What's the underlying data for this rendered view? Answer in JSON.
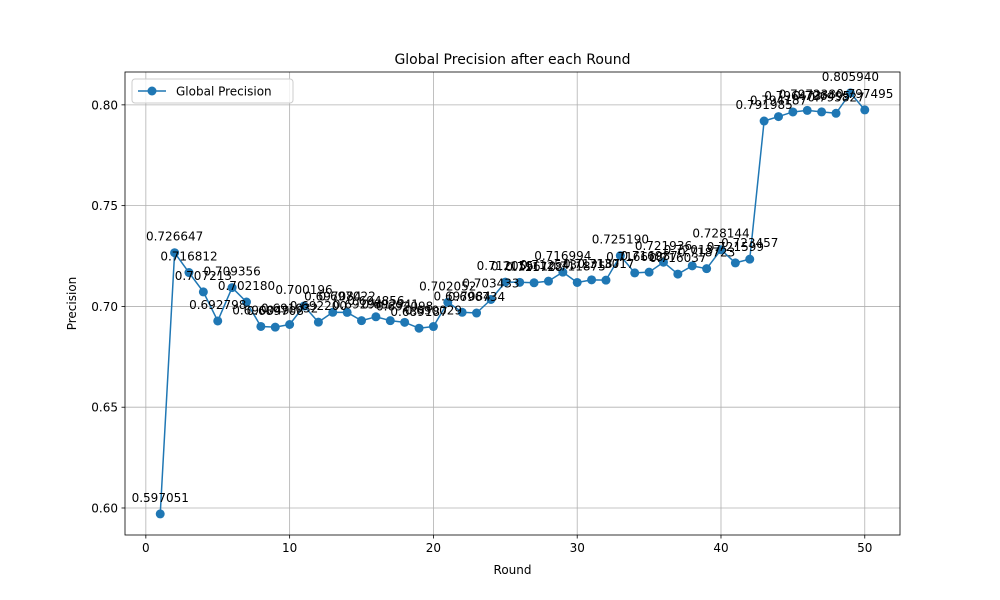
{
  "chart_data": {
    "type": "line",
    "title": "Global Precision after each Round",
    "xlabel": "Round",
    "ylabel": "Precision",
    "xlim": [
      -1.45,
      52.45
    ],
    "ylim": [
      0.5866,
      0.8163
    ],
    "xticks": [
      0,
      10,
      20,
      30,
      40,
      50
    ],
    "xtick_labels": [
      "0",
      "10",
      "20",
      "30",
      "40",
      "50"
    ],
    "yticks": [
      0.6,
      0.65,
      0.7,
      0.75,
      0.8
    ],
    "ytick_labels": [
      "0.60",
      "0.65",
      "0.70",
      "0.75",
      "0.80"
    ],
    "grid": true,
    "legend_position": "top-left",
    "series": [
      {
        "name": "Global Precision",
        "color": "#1f77b4",
        "marker": "circle",
        "x": [
          1,
          2,
          3,
          4,
          5,
          6,
          7,
          8,
          9,
          10,
          11,
          12,
          13,
          14,
          15,
          16,
          17,
          18,
          19,
          20,
          21,
          22,
          23,
          24,
          25,
          26,
          27,
          28,
          29,
          30,
          31,
          32,
          33,
          34,
          35,
          36,
          37,
          38,
          39,
          40,
          41,
          42,
          43,
          44,
          45,
          46,
          47,
          48,
          49,
          50
        ],
        "values": [
          0.597051,
          0.726647,
          0.716812,
          0.707213,
          0.692798,
          0.709356,
          0.70218,
          0.690049,
          0.689708,
          0.691032,
          0.700196,
          0.6922,
          0.697084,
          0.697022,
          0.692941,
          0.694856,
          0.692941,
          0.692098,
          0.689187,
          0.690029,
          0.702052,
          0.697084,
          0.696734,
          0.703433,
          0.712055,
          0.711961,
          0.711728,
          0.712543,
          0.716994,
          0.711875,
          0.713187,
          0.713017,
          0.72519,
          0.716618,
          0.716987,
          0.721936,
          0.716037,
          0.720137,
          0.718723,
          0.728144,
          0.721599,
          0.723457,
          0.791985,
          0.794187,
          0.796473,
          0.797238,
          0.796495,
          0.795827,
          0.80594,
          0.797495
        ],
        "labels": [
          "0.597051",
          "0.726647",
          "0.716812",
          "0.707213",
          "0.692798",
          "0.709356",
          "0.702180",
          "0.690049",
          "0.689708",
          "0.691032",
          "0.700196",
          "0.692200",
          "0.697084",
          "0.697022",
          "0.692941",
          "0.694856",
          "0.692941",
          "0.692098",
          "0.689187",
          "0.690029",
          "0.702052",
          "0.697084",
          "0.696734",
          "0.703433",
          "0.712055",
          "0.711961",
          "0.711728",
          "0.712543",
          "0.716994",
          "0.711875",
          "0.713187",
          "0.713017",
          "0.725190",
          "0.716618",
          "0.716987",
          "0.721936",
          "0.716037",
          "0.720137",
          "0.718723",
          "0.728144",
          "0.721599",
          "0.723457",
          "0.791985",
          "0.794187",
          "0.796473",
          "0.797238",
          "0.796495",
          "0.795827",
          "0.805940",
          "0.797495"
        ]
      }
    ]
  }
}
